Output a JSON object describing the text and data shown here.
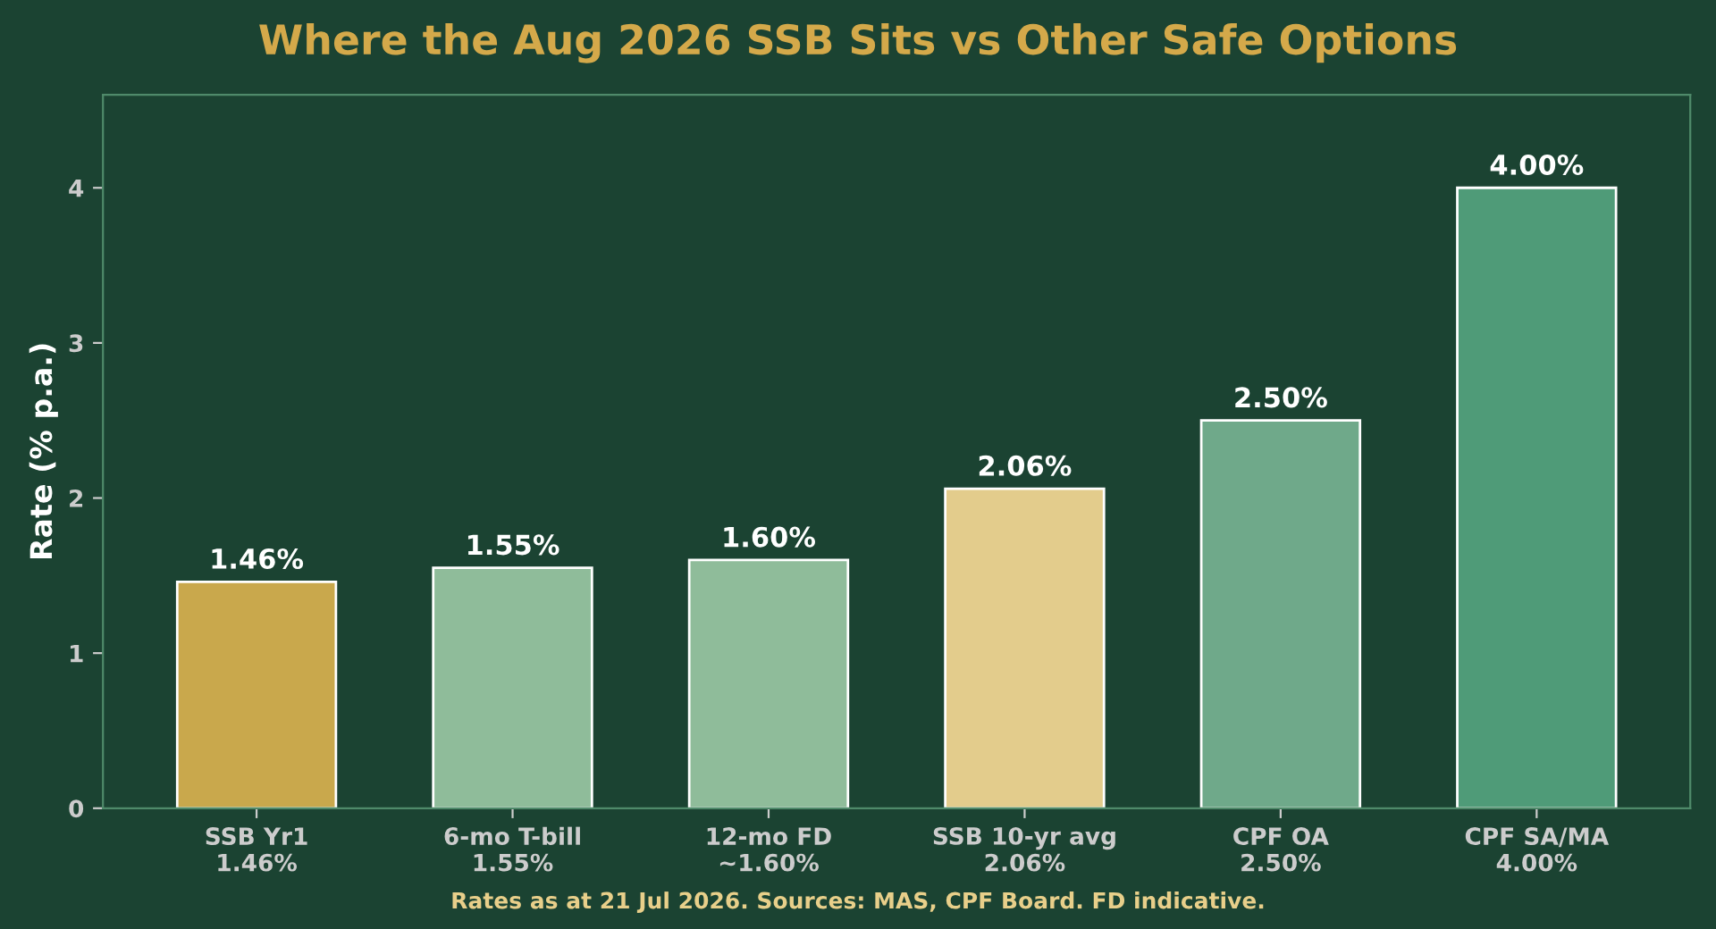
{
  "chart_data": {
    "type": "bar",
    "title": "Where the Aug 2026 SSB Sits vs Other Safe Options",
    "ylabel": "Rate (% p.a.)",
    "categories": [
      "SSB Yr1\n1.46%",
      "6-mo T-bill\n1.55%",
      "12-mo FD\n~1.60%",
      "SSB 10-yr avg\n2.06%",
      "CPF OA\n2.50%",
      "CPF SA/MA\n4.00%"
    ],
    "values": [
      1.46,
      1.55,
      1.6,
      2.06,
      2.5,
      4.0
    ],
    "value_labels": [
      "1.46%",
      "1.55%",
      "1.60%",
      "2.06%",
      "2.50%",
      "4.00%"
    ],
    "colors": [
      "#c9a84c",
      "#8fbc9a",
      "#8fbc9a",
      "#e3cc8c",
      "#6fa98a",
      "#4f9b78"
    ],
    "ylim": [
      0,
      4.6
    ],
    "yticks": [
      0,
      1,
      2,
      3,
      4
    ],
    "grid": false,
    "legend": false,
    "annotations": [
      "Rates as at 21 Jul 2026. Sources: MAS, CPF Board. FD indicative."
    ]
  }
}
